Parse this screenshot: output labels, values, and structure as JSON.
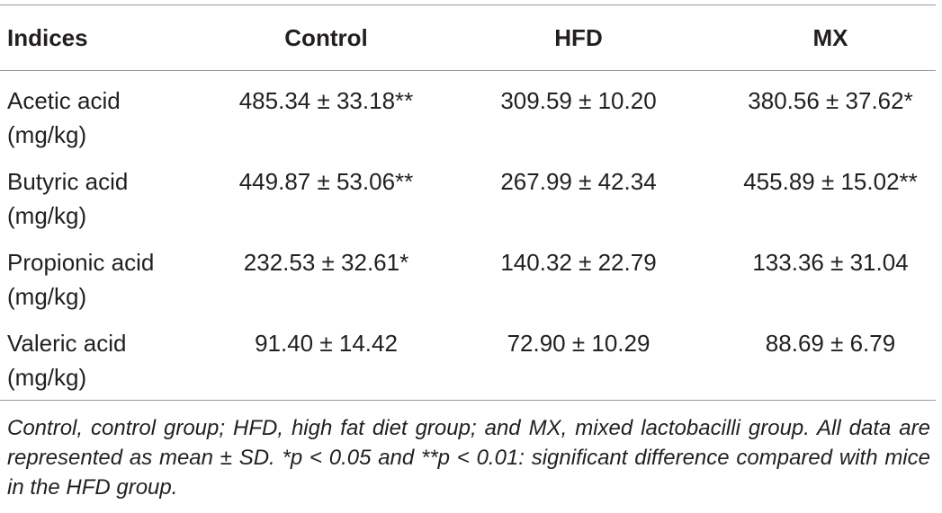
{
  "table": {
    "header": [
      "Indices",
      "Control",
      "HFD",
      "MX"
    ],
    "rows": [
      [
        "Acetic acid (mg/kg)",
        "485.34 ± 33.18**",
        "309.59 ± 10.20",
        "380.56 ± 37.62*"
      ],
      [
        "Butyric acid (mg/kg)",
        "449.87 ± 53.06**",
        "267.99 ± 42.34",
        "455.89 ± 15.02**"
      ],
      [
        "Propionic acid (mg/kg)",
        "232.53 ± 32.61*",
        "140.32 ± 22.79",
        "133.36 ± 31.04"
      ],
      [
        "Valeric acid (mg/kg)",
        "91.40 ± 14.42",
        "72.90 ± 10.29",
        "88.69 ± 6.79"
      ]
    ],
    "footnote": "Control, control group; HFD, high fat diet group; and MX, mixed lactobacilli group. All data are represented as mean ± SD. *p < 0.05 and **p < 0.01: significant difference compared with mice in the HFD group."
  }
}
